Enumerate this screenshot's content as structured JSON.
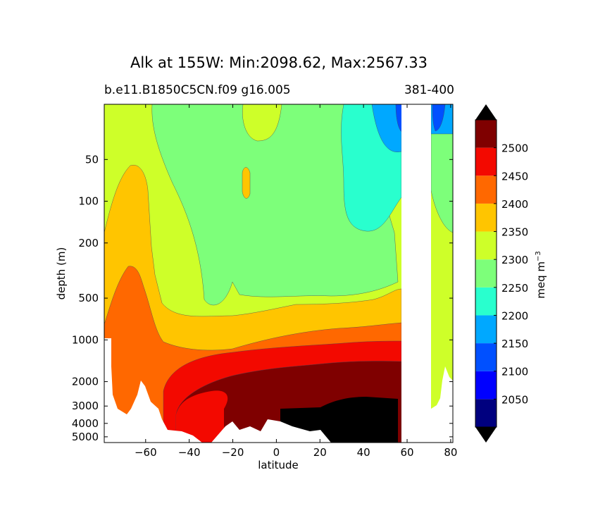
{
  "chart_data": {
    "type": "filled-contour",
    "title": "Alk at 155W: Min:2098.62, Max:2567.33",
    "subtitle_left": "b.e11.B1850C5CN.f09 g16.005",
    "subtitle_right": "381-400",
    "xlabel": "latitude",
    "ylabel": "depth (m)",
    "xlim": [
      -79,
      81
    ],
    "x_ticks": [
      -60,
      -40,
      -20,
      0,
      20,
      40,
      60,
      80
    ],
    "y_scale": "log (inverted)",
    "ylim": [
      5500,
      20
    ],
    "y_ticks": [
      50,
      100,
      200,
      500,
      1000,
      2000,
      3000,
      4000,
      5000
    ],
    "colorbar": {
      "label": "meq m",
      "label_superscript": "−3",
      "extend": "both",
      "levels": [
        2050,
        2100,
        2150,
        2200,
        2250,
        2300,
        2350,
        2400,
        2450,
        2500
      ],
      "tick_labels": [
        "2050",
        "2100",
        "2150",
        "2200",
        "2250",
        "2300",
        "2350",
        "2400",
        "2450",
        "2500"
      ],
      "colors": [
        "#00007f",
        "#0000ff",
        "#0050ff",
        "#00a8ff",
        "#29ffce",
        "#7dff7a",
        "#ceff29",
        "#ffc500",
        "#ff6800",
        "#f30900",
        "#7f0000"
      ],
      "under_color": "#000000",
      "over_color": "#000000"
    },
    "fields": {
      "bands_from_south": [
        {
          "lat_start": -79,
          "surface": "2350",
          "deep": "2450"
        },
        {
          "lat_start": -58,
          "surface": "2300",
          "deep": "2500"
        },
        {
          "lat_start": -42,
          "surface": "2250",
          "deep": ">2500"
        },
        {
          "lat_start": 20,
          "surface": "2200",
          "deep": ">2500"
        },
        {
          "lat_start": 46,
          "surface": "2150",
          "deep": "2500"
        },
        {
          "lat_start": 73,
          "surface": "2100",
          "deep": "2300"
        }
      ],
      "land_gap_lat": [
        56,
        71
      ]
    }
  }
}
